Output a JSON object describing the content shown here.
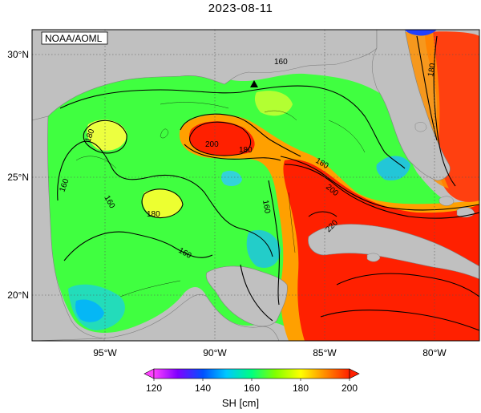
{
  "title": "2023-08-11",
  "source_label": "NOAA/AOML",
  "lat_labels": [
    "30°N",
    "25°N",
    "20°N"
  ],
  "lon_labels": [
    "95°W",
    "90°W",
    "85°W",
    "80°W"
  ],
  "contour_labels": [
    "160",
    "180",
    "180",
    "160",
    "160",
    "180",
    "200",
    "180",
    "180",
    "200",
    "160",
    "220",
    "160",
    "180"
  ],
  "colorbar": {
    "ticks": [
      "120",
      "140",
      "160",
      "180",
      "200"
    ],
    "unit_label": "SH [cm]",
    "colors": [
      "#ff40ff",
      "#8000ff",
      "#0050ff",
      "#00c8ff",
      "#00ff80",
      "#80ff00",
      "#ffff00",
      "#ff9000",
      "#ff2000"
    ]
  },
  "colors": {
    "land": "#c0c0c0",
    "water_warm": "#ff2000",
    "water_mid": "#40ff40"
  }
}
